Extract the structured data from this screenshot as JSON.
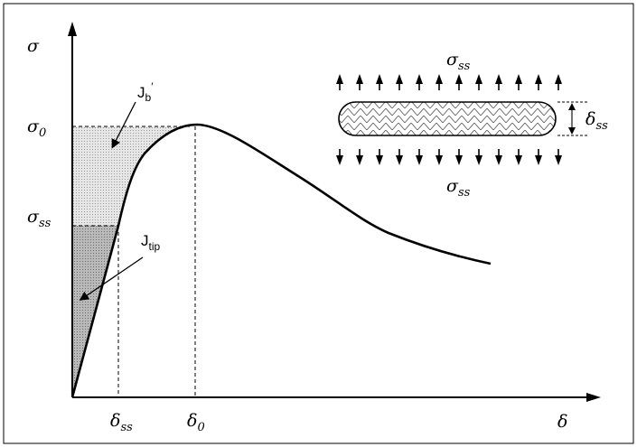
{
  "figure": {
    "y_axis_symbol": "σ",
    "x_axis_symbol": "δ",
    "y_ticks": [
      {
        "main": "σ",
        "sub": "0"
      },
      {
        "main": "σ",
        "sub": "ss"
      }
    ],
    "x_ticks": [
      {
        "main": "δ",
        "sub": "ss"
      },
      {
        "main": "δ",
        "sub": "0"
      }
    ],
    "energy_labels": {
      "jb": {
        "main": "J",
        "sub": "b",
        "prime": "′"
      },
      "jtip": {
        "main": "J",
        "sub": "tip"
      }
    },
    "inset": {
      "stress_top": {
        "main": "σ",
        "sub": "ss"
      },
      "stress_bottom": {
        "main": "σ",
        "sub": "ss"
      },
      "opening": {
        "main": "δ",
        "sub": "ss"
      }
    },
    "colors": {
      "jb_region": "#e4e4e4",
      "jtip_region": "#bdbdbd",
      "curve": "#000000"
    }
  }
}
